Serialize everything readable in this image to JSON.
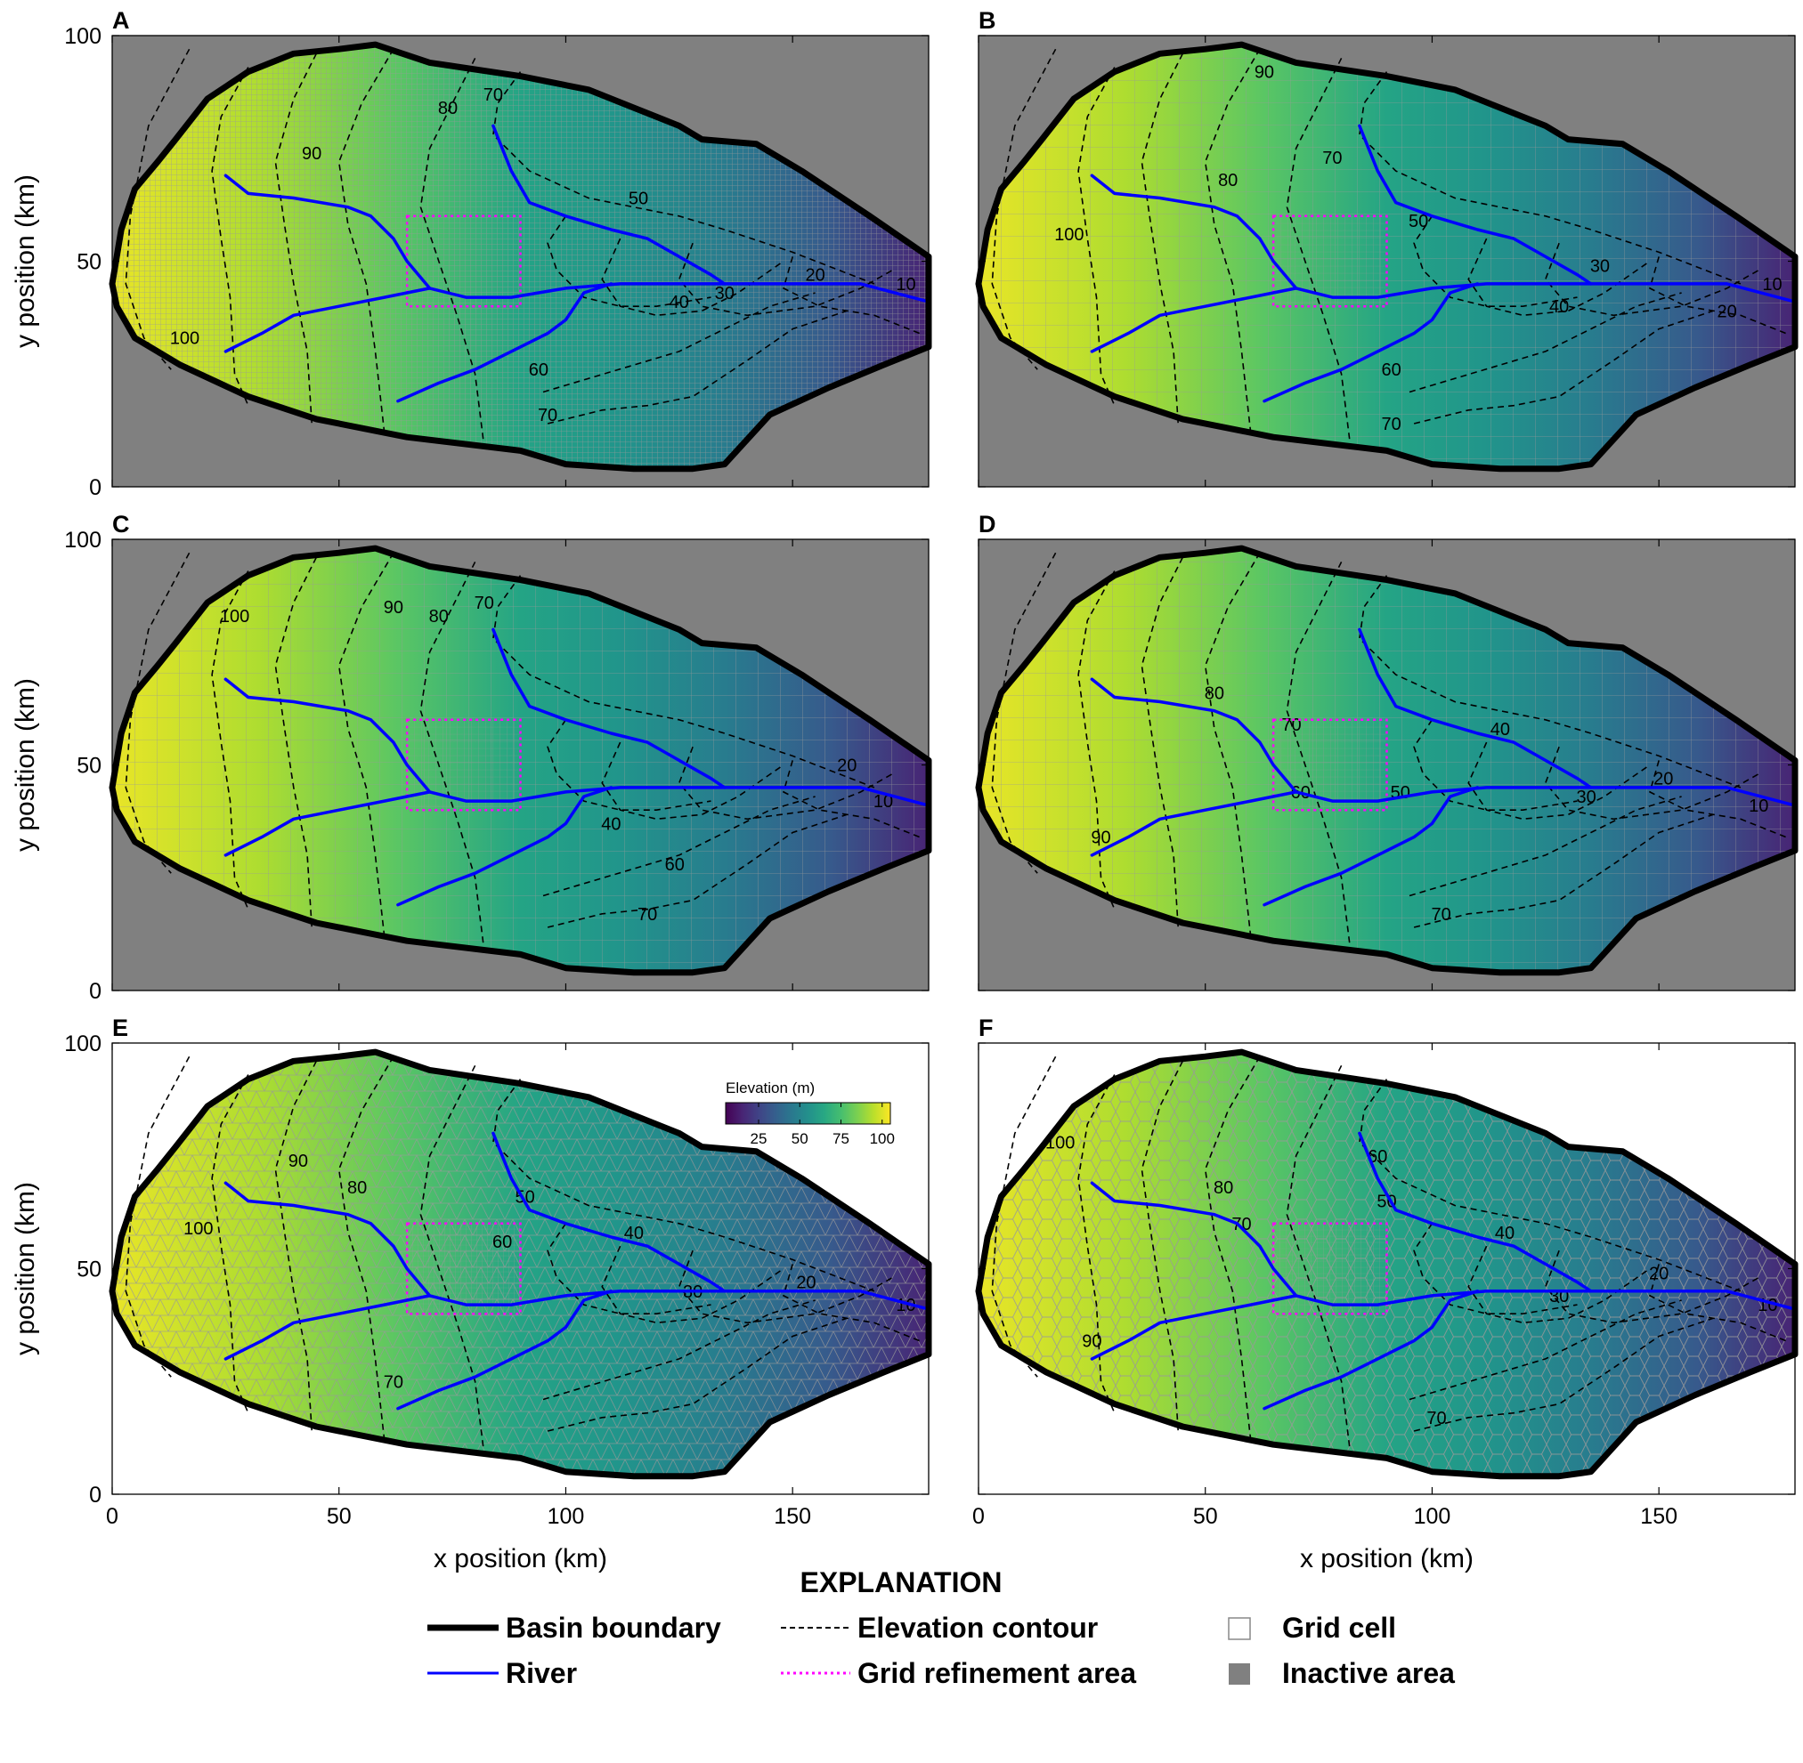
{
  "axes": {
    "xlabel": "x position (km)",
    "ylabel": "y position (km)",
    "xlim": [
      0,
      180
    ],
    "ylim": [
      0,
      100
    ],
    "x_ticks": [
      "0",
      "50",
      "100",
      "150"
    ],
    "y_ticks": [
      "0",
      "50",
      "100"
    ]
  },
  "colorbar": {
    "label": "Elevation (m)",
    "ticks": [
      "25",
      "50",
      "75",
      "100"
    ],
    "range": [
      5,
      105
    ],
    "colormap": [
      "#440154",
      "#3b528b",
      "#21918c",
      "#5ec962",
      "#fde725"
    ]
  },
  "colors": {
    "inactive": "#808080",
    "river": "#0000ff",
    "refinement": "#ff00ff",
    "boundary": "#000000",
    "grid": "#999999"
  },
  "explanation": {
    "title": "EXPLANATION",
    "items": [
      {
        "label": "Basin boundary",
        "symbol": "thick-black-line"
      },
      {
        "label": "Elevation contour",
        "symbol": "dashed-black-line"
      },
      {
        "label": "Grid cell",
        "symbol": "open-square"
      },
      {
        "label": "River",
        "symbol": "blue-line"
      },
      {
        "label": "Grid refinement area",
        "symbol": "dotted-magenta-line"
      },
      {
        "label": "Inactive area",
        "symbol": "gray-square"
      }
    ]
  },
  "chart_data": [
    {
      "panel": "A",
      "type": "heatmap",
      "grid": "fine uniform rectangular",
      "inactive_area": true,
      "contour_labels": [
        {
          "text": "100",
          "x": 16,
          "y": 33
        },
        {
          "text": "90",
          "x": 44,
          "y": 74
        },
        {
          "text": "80",
          "x": 74,
          "y": 84
        },
        {
          "text": "70",
          "x": 84,
          "y": 87
        },
        {
          "text": "50",
          "x": 116,
          "y": 64
        },
        {
          "text": "30",
          "x": 135,
          "y": 43
        },
        {
          "text": "40",
          "x": 125,
          "y": 41
        },
        {
          "text": "20",
          "x": 155,
          "y": 47
        },
        {
          "text": "10",
          "x": 175,
          "y": 45
        },
        {
          "text": "60",
          "x": 94,
          "y": 26
        },
        {
          "text": "70",
          "x": 96,
          "y": 16
        }
      ]
    },
    {
      "panel": "B",
      "type": "heatmap",
      "grid": "coarse rectangular with local refinement",
      "inactive_area": true,
      "contour_labels": [
        {
          "text": "100",
          "x": 20,
          "y": 56
        },
        {
          "text": "90",
          "x": 63,
          "y": 92
        },
        {
          "text": "80",
          "x": 55,
          "y": 68
        },
        {
          "text": "70",
          "x": 78,
          "y": 73
        },
        {
          "text": "50",
          "x": 97,
          "y": 59
        },
        {
          "text": "30",
          "x": 137,
          "y": 49
        },
        {
          "text": "10",
          "x": 175,
          "y": 45
        },
        {
          "text": "40",
          "x": 128,
          "y": 40
        },
        {
          "text": "20",
          "x": 165,
          "y": 39
        },
        {
          "text": "60",
          "x": 91,
          "y": 26
        },
        {
          "text": "70",
          "x": 91,
          "y": 14
        }
      ]
    },
    {
      "panel": "C",
      "type": "heatmap",
      "grid": "coarse rectangular with nested refinement",
      "inactive_area": true,
      "contour_labels": [
        {
          "text": "100",
          "x": 27,
          "y": 83
        },
        {
          "text": "90",
          "x": 62,
          "y": 85
        },
        {
          "text": "80",
          "x": 72,
          "y": 83
        },
        {
          "text": "70",
          "x": 82,
          "y": 86
        },
        {
          "text": "20",
          "x": 162,
          "y": 50
        },
        {
          "text": "10",
          "x": 170,
          "y": 42
        },
        {
          "text": "40",
          "x": 110,
          "y": 37
        },
        {
          "text": "60",
          "x": 124,
          "y": 28
        },
        {
          "text": "70",
          "x": 118,
          "y": 17
        }
      ]
    },
    {
      "panel": "D",
      "type": "heatmap",
      "grid": "quadtree rectangular",
      "inactive_area": true,
      "contour_labels": [
        {
          "text": "80",
          "x": 52,
          "y": 66
        },
        {
          "text": "70",
          "x": 69,
          "y": 59
        },
        {
          "text": "40",
          "x": 115,
          "y": 58
        },
        {
          "text": "60",
          "x": 71,
          "y": 44
        },
        {
          "text": "50",
          "x": 93,
          "y": 44
        },
        {
          "text": "30",
          "x": 134,
          "y": 43
        },
        {
          "text": "20",
          "x": 151,
          "y": 47
        },
        {
          "text": "10",
          "x": 172,
          "y": 41
        },
        {
          "text": "90",
          "x": 27,
          "y": 34
        },
        {
          "text": "70",
          "x": 102,
          "y": 17
        }
      ]
    },
    {
      "panel": "E",
      "type": "heatmap",
      "grid": "triangular",
      "inactive_area": false,
      "contour_labels": [
        {
          "text": "90",
          "x": 41,
          "y": 74
        },
        {
          "text": "80",
          "x": 54,
          "y": 68
        },
        {
          "text": "100",
          "x": 19,
          "y": 59
        },
        {
          "text": "50",
          "x": 91,
          "y": 66
        },
        {
          "text": "40",
          "x": 115,
          "y": 58
        },
        {
          "text": "60",
          "x": 86,
          "y": 56
        },
        {
          "text": "20",
          "x": 153,
          "y": 47
        },
        {
          "text": "30",
          "x": 128,
          "y": 45
        },
        {
          "text": "10",
          "x": 175,
          "y": 42
        },
        {
          "text": "70",
          "x": 62,
          "y": 25
        }
      ]
    },
    {
      "panel": "F",
      "type": "heatmap",
      "grid": "Voronoi",
      "inactive_area": false,
      "contour_labels": [
        {
          "text": "100",
          "x": 18,
          "y": 78
        },
        {
          "text": "60",
          "x": 88,
          "y": 75
        },
        {
          "text": "50",
          "x": 90,
          "y": 65
        },
        {
          "text": "80",
          "x": 54,
          "y": 68
        },
        {
          "text": "70",
          "x": 58,
          "y": 60
        },
        {
          "text": "40",
          "x": 116,
          "y": 58
        },
        {
          "text": "20",
          "x": 150,
          "y": 49
        },
        {
          "text": "30",
          "x": 128,
          "y": 44
        },
        {
          "text": "10",
          "x": 174,
          "y": 42
        },
        {
          "text": "90",
          "x": 25,
          "y": 34
        },
        {
          "text": "70",
          "x": 101,
          "y": 17
        }
      ]
    }
  ]
}
